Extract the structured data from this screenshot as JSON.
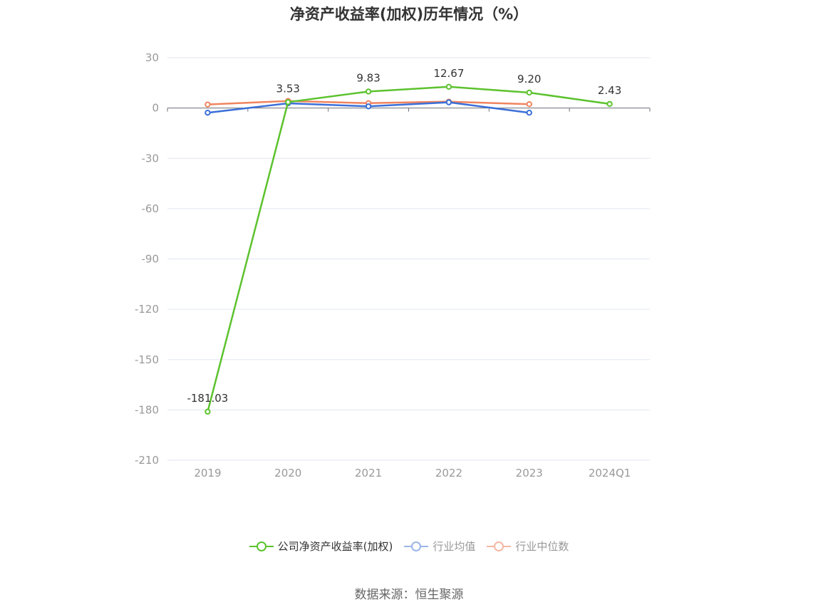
{
  "chart_data": {
    "type": "line",
    "title": "净资产收益率(加权)历年情况（%）",
    "categories": [
      "2019",
      "2020",
      "2021",
      "2022",
      "2023",
      "2024Q1"
    ],
    "ylim": [
      -210,
      30
    ],
    "yticks": [
      "30",
      "0",
      "-30",
      "-60",
      "-90",
      "-120",
      "-150",
      "-180",
      "-210"
    ],
    "grid": true,
    "legend_position": "bottom",
    "series": [
      {
        "name": "公司净资产收益率(加权)",
        "color": "#5cc22e",
        "values": [
          -181.03,
          3.53,
          9.83,
          12.67,
          9.2,
          2.43
        ],
        "labels": [
          "-181.03",
          "3.53",
          "9.83",
          "12.67",
          "9.20",
          "2.43"
        ]
      },
      {
        "name": "行业均值",
        "color": "#3a6fd8",
        "values": [
          -2.8,
          2.8,
          1.0,
          3.4,
          -2.8,
          null
        ]
      },
      {
        "name": "行业中位数",
        "color": "#f0845f",
        "values": [
          2.1,
          4.2,
          2.9,
          3.8,
          2.3,
          null
        ]
      }
    ]
  },
  "legend_colors": {
    "公司净资产收益率(加权)": {
      "line": "#5cc22e",
      "ring": "#5cc22e",
      "text": "#333333"
    },
    "行业均值": {
      "line": "#9ab6e8",
      "ring": "#9ab6e8",
      "text": "#999999"
    },
    "行业中位数": {
      "line": "#f5b8a2",
      "ring": "#f5b8a2",
      "text": "#999999"
    }
  },
  "source": "数据来源：恒生聚源"
}
